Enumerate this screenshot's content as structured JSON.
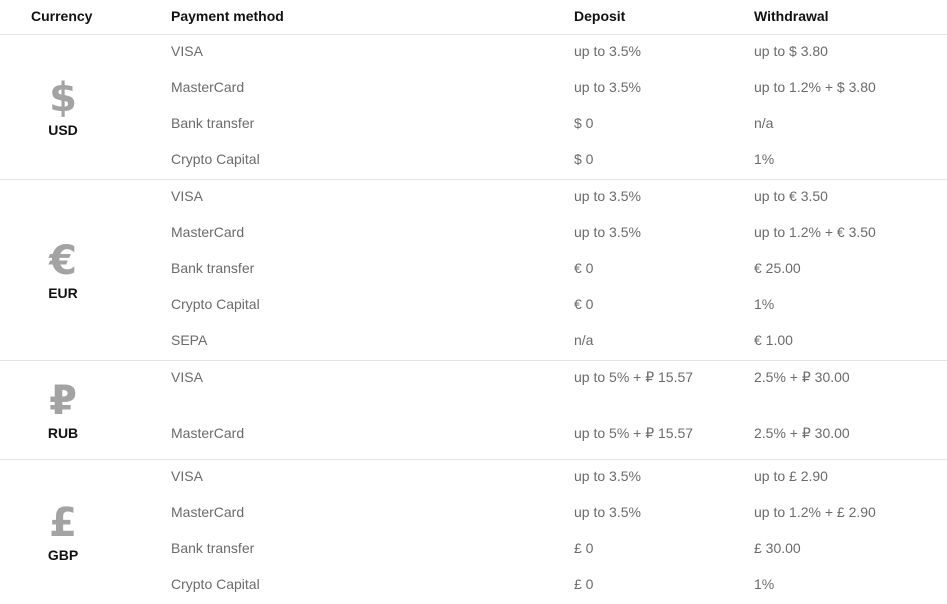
{
  "header": {
    "currency": "Currency",
    "payment_method": "Payment method",
    "deposit": "Deposit",
    "withdrawal": "Withdrawal"
  },
  "groups": [
    {
      "symbol": "$",
      "code": "USD",
      "rows": [
        {
          "method": "VISA",
          "deposit": "up to 3.5%",
          "withdrawal": "up to $ 3.80"
        },
        {
          "method": "MasterCard",
          "deposit": "up to 3.5%",
          "withdrawal": "up to 1.2% + $ 3.80"
        },
        {
          "method": "Bank transfer",
          "deposit": "$ 0",
          "withdrawal": "n/a"
        },
        {
          "method": "Crypto Capital",
          "deposit": "$ 0",
          "withdrawal": "1%"
        }
      ]
    },
    {
      "symbol": "€",
      "code": "EUR",
      "rows": [
        {
          "method": "VISA",
          "deposit": "up to 3.5%",
          "withdrawal": "up to € 3.50"
        },
        {
          "method": "MasterCard",
          "deposit": "up to 3.5%",
          "withdrawal": "up to 1.2% + € 3.50"
        },
        {
          "method": "Bank transfer",
          "deposit": "€ 0",
          "withdrawal": "€ 25.00"
        },
        {
          "method": "Crypto Capital",
          "deposit": "€ 0",
          "withdrawal": "1%"
        },
        {
          "method": "SEPA",
          "deposit": "n/a",
          "withdrawal": "€ 1.00"
        }
      ]
    },
    {
      "symbol": "₽",
      "code": "RUB",
      "rows": [
        {
          "method": "VISA",
          "deposit": "up to 5% + ₽ 15.57",
          "withdrawal": "2.5% + ₽ 30.00"
        },
        {
          "method": "MasterCard",
          "deposit": "up to 5% + ₽ 15.57",
          "withdrawal": "2.5% + ₽ 30.00"
        }
      ]
    },
    {
      "symbol": "£",
      "code": "GBP",
      "rows": [
        {
          "method": "VISA",
          "deposit": "up to 3.5%",
          "withdrawal": "up to £ 2.90"
        },
        {
          "method": "MasterCard",
          "deposit": "up to 3.5%",
          "withdrawal": "up to 1.2% + £ 2.90"
        },
        {
          "method": "Bank transfer",
          "deposit": "£ 0",
          "withdrawal": "£ 30.00"
        },
        {
          "method": "Crypto Capital",
          "deposit": "£ 0",
          "withdrawal": "1%"
        }
      ]
    }
  ]
}
